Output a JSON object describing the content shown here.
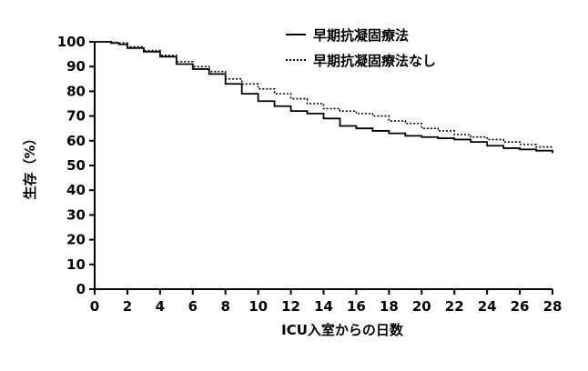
{
  "chart_data": {
    "type": "line",
    "xlabel": "ICU入室からの日数",
    "ylabel": "生存（%）",
    "xlim": [
      0,
      28
    ],
    "ylim": [
      0,
      100
    ],
    "x_ticks": [
      0,
      2,
      4,
      6,
      8,
      10,
      12,
      14,
      16,
      18,
      20,
      22,
      24,
      26,
      28
    ],
    "y_ticks": [
      0,
      10,
      20,
      30,
      40,
      50,
      60,
      70,
      80,
      90,
      100
    ],
    "grid": false,
    "legend_position": "top-right",
    "step": true,
    "series": [
      {
        "name": "早期抗凝固療法",
        "line_style": "solid",
        "color": "#000000",
        "x": [
          0,
          1,
          1.5,
          2,
          3,
          4,
          5,
          6,
          7,
          8,
          9,
          10,
          11,
          12,
          13,
          14,
          15,
          16,
          17,
          18,
          19,
          20,
          21,
          22,
          23,
          24,
          25,
          26,
          27,
          28
        ],
        "y": [
          100,
          99.5,
          99,
          97.5,
          96,
          94,
          91,
          89,
          87,
          83,
          79,
          76,
          74,
          72,
          71,
          69,
          66,
          65,
          64,
          63,
          62,
          61.5,
          61,
          60.5,
          59.5,
          58,
          57,
          56.5,
          56,
          55
        ]
      },
      {
        "name": "早期抗凝固療法なし",
        "line_style": "dotted",
        "color": "#000000",
        "x": [
          0,
          1,
          1.5,
          2,
          3,
          4,
          5,
          6,
          7,
          8,
          9,
          10,
          11,
          12,
          13,
          14,
          15,
          16,
          17,
          18,
          19,
          20,
          21,
          22,
          23,
          24,
          25,
          26,
          27,
          28
        ],
        "y": [
          100,
          99.8,
          99.5,
          98,
          96.5,
          94.5,
          92,
          90,
          88,
          85,
          83,
          81,
          79,
          77,
          75,
          73,
          72,
          71,
          70,
          68,
          67,
          65,
          64,
          62.5,
          61.5,
          60.5,
          59.5,
          58.5,
          57.5,
          57
        ]
      }
    ]
  }
}
